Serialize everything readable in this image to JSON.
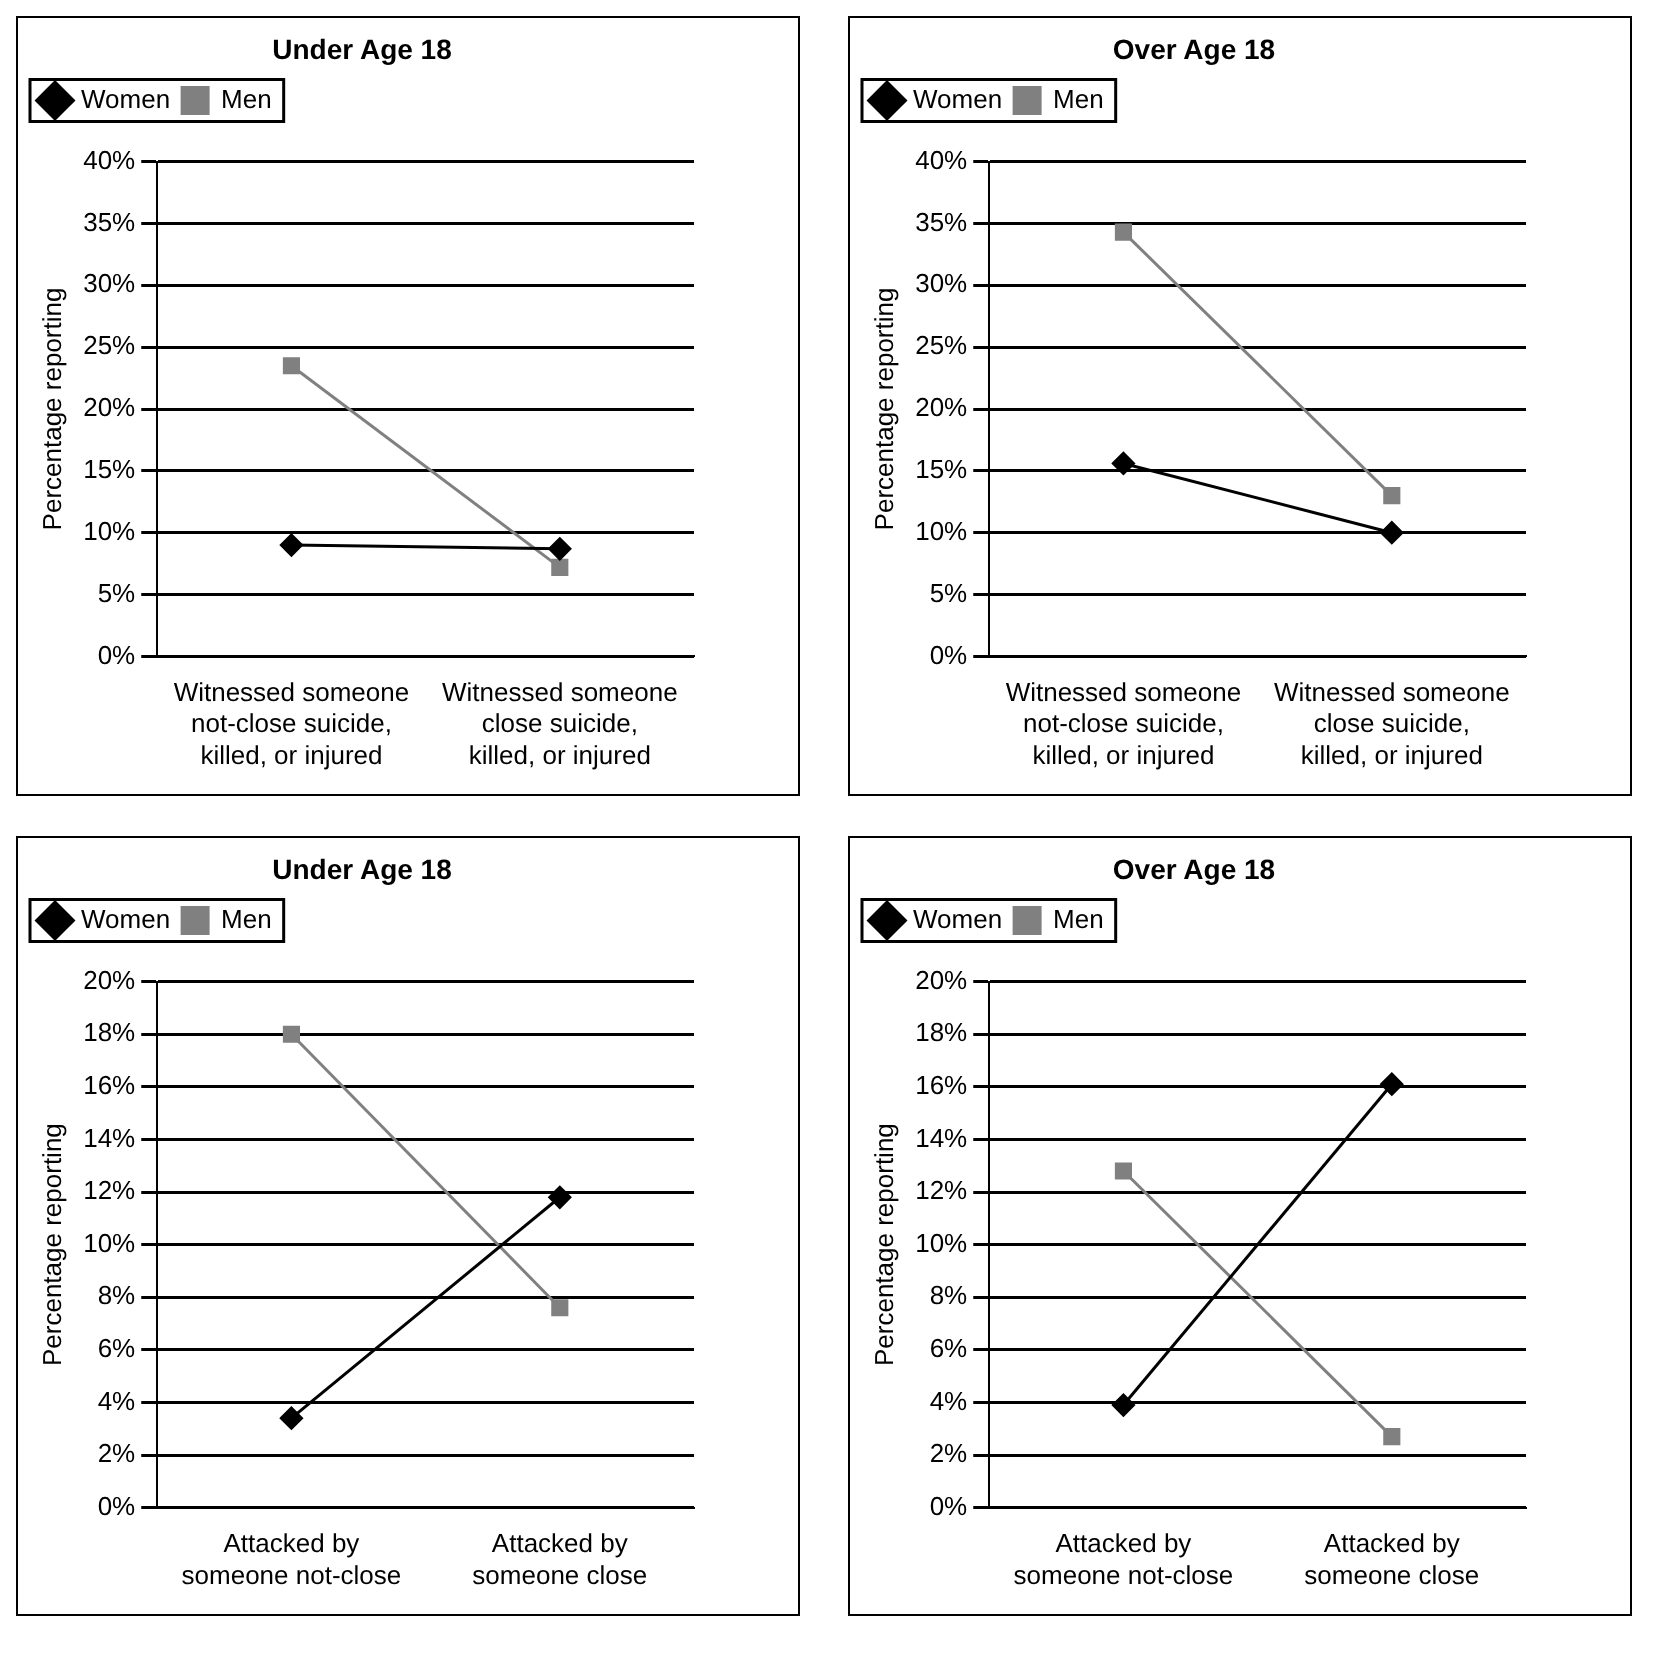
{
  "chart_data": [
    {
      "type": "line",
      "title": "Under Age 18",
      "ylabel": "Percentage reporting",
      "categories": [
        "Witnessed someone not-close suicide, killed, or injured",
        "Witnessed someone close suicide, killed, or injured"
      ],
      "series": [
        {
          "name": "Women",
          "color": "#000000",
          "marker": "diamond",
          "values": [
            9,
            8.7
          ]
        },
        {
          "name": "Men",
          "color": "#808080",
          "marker": "square",
          "values": [
            23.5,
            7.2
          ]
        }
      ],
      "ylim": [
        0,
        40
      ],
      "yticks": [
        {
          "value": 0,
          "label": "0%"
        },
        {
          "value": 5,
          "label": "5%"
        },
        {
          "value": 10,
          "label": "10%"
        },
        {
          "value": 15,
          "label": "15%"
        },
        {
          "value": 20,
          "label": "20%"
        },
        {
          "value": 25,
          "label": "25%"
        },
        {
          "value": 30,
          "label": "30%"
        },
        {
          "value": 35,
          "label": "35%"
        },
        {
          "value": 40,
          "label": "40%"
        }
      ],
      "grid": "y",
      "legend": "top left"
    },
    {
      "type": "line",
      "title": "Over Age 18",
      "ylabel": "Percentage reporting",
      "categories": [
        "Witnessed someone not-close suicide, killed, or injured",
        "Witnessed someone close suicide, killed, or injured"
      ],
      "series": [
        {
          "name": "Women",
          "color": "#000000",
          "marker": "diamond",
          "values": [
            15.6,
            10
          ]
        },
        {
          "name": "Men",
          "color": "#808080",
          "marker": "square",
          "values": [
            34.3,
            13
          ]
        }
      ],
      "ylim": [
        0,
        40
      ],
      "yticks": [
        {
          "value": 0,
          "label": "0%"
        },
        {
          "value": 5,
          "label": "5%"
        },
        {
          "value": 10,
          "label": "10%"
        },
        {
          "value": 15,
          "label": "15%"
        },
        {
          "value": 20,
          "label": "20%"
        },
        {
          "value": 25,
          "label": "25%"
        },
        {
          "value": 30,
          "label": "30%"
        },
        {
          "value": 35,
          "label": "35%"
        },
        {
          "value": 40,
          "label": "40%"
        }
      ],
      "grid": "y",
      "legend": "top left"
    },
    {
      "type": "line",
      "title": "Under Age 18",
      "ylabel": "Percentage reporting",
      "categories": [
        "Attacked by someone not-close",
        "Attacked by someone close"
      ],
      "series": [
        {
          "name": "Women",
          "color": "#000000",
          "marker": "diamond",
          "values": [
            3.4,
            11.8
          ]
        },
        {
          "name": "Men",
          "color": "#808080",
          "marker": "square",
          "values": [
            18,
            7.6
          ]
        }
      ],
      "ylim": [
        0,
        20
      ],
      "yticks": [
        {
          "value": 0,
          "label": "0%"
        },
        {
          "value": 2,
          "label": "2%"
        },
        {
          "value": 4,
          "label": "4%"
        },
        {
          "value": 6,
          "label": "6%"
        },
        {
          "value": 8,
          "label": "8%"
        },
        {
          "value": 10,
          "label": "10%"
        },
        {
          "value": 12,
          "label": "12%"
        },
        {
          "value": 14,
          "label": "14%"
        },
        {
          "value": 16,
          "label": "16%"
        },
        {
          "value": 18,
          "label": "18%"
        },
        {
          "value": 20,
          "label": "20%"
        }
      ],
      "grid": "y",
      "legend": "top left"
    },
    {
      "type": "line",
      "title": "Over Age 18",
      "ylabel": "Percentage reporting",
      "categories": [
        "Attacked by someone not-close",
        "Attacked by someone close"
      ],
      "series": [
        {
          "name": "Women",
          "color": "#000000",
          "marker": "diamond",
          "values": [
            3.9,
            16.1
          ]
        },
        {
          "name": "Men",
          "color": "#808080",
          "marker": "square",
          "values": [
            12.8,
            2.7
          ]
        }
      ],
      "ylim": [
        0,
        20
      ],
      "yticks": [
        {
          "value": 0,
          "label": "0%"
        },
        {
          "value": 2,
          "label": "2%"
        },
        {
          "value": 4,
          "label": "4%"
        },
        {
          "value": 6,
          "label": "6%"
        },
        {
          "value": 8,
          "label": "8%"
        },
        {
          "value": 10,
          "label": "10%"
        },
        {
          "value": 12,
          "label": "12%"
        },
        {
          "value": 14,
          "label": "14%"
        },
        {
          "value": 16,
          "label": "16%"
        },
        {
          "value": 18,
          "label": "18%"
        },
        {
          "value": 20,
          "label": "20%"
        }
      ],
      "grid": "y",
      "legend": "top left"
    }
  ]
}
